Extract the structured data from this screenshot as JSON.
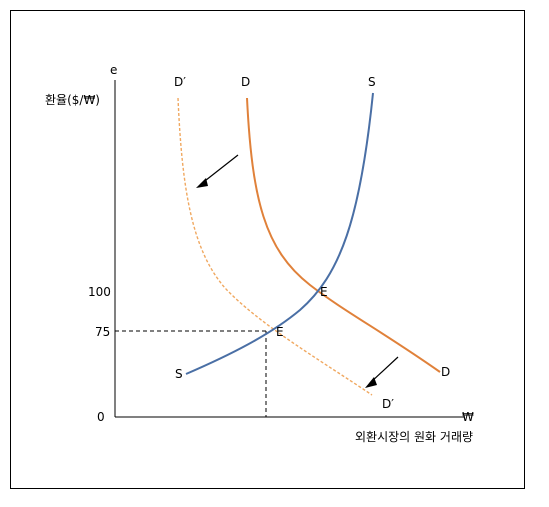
{
  "axes": {
    "y_symbol": "e",
    "y_label": "환율($/₩)",
    "x_symbol": "₩",
    "x_label": "외환시장의 원화 거래량",
    "origin": "0",
    "ticks": [
      "100",
      "75"
    ]
  },
  "curves": {
    "supply": {
      "top_label": "S",
      "bottom_label": "S",
      "color": "#4a6fa5"
    },
    "demand": {
      "top_label": "D",
      "bottom_label": "D",
      "color": "#e0813a"
    },
    "demand_new": {
      "top_label": "D′",
      "bottom_label": "D′",
      "color": "#f0a860"
    }
  },
  "equilibria": {
    "original": "E",
    "new": "E"
  },
  "colors": {
    "axis": "#000000",
    "guide": "#000000"
  }
}
